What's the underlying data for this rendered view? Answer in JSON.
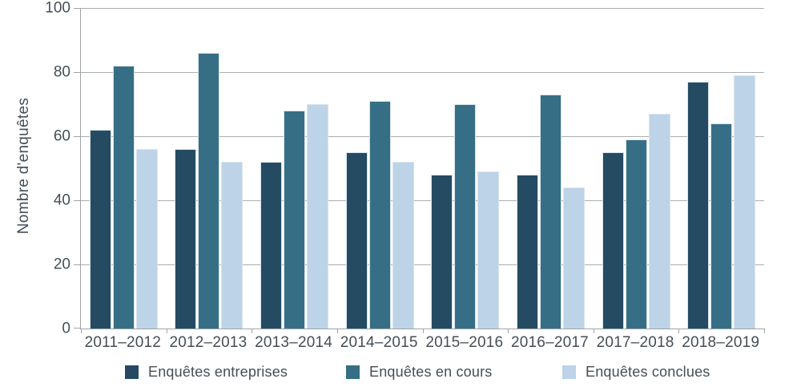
{
  "chart_data": {
    "type": "bar",
    "title": "",
    "xlabel": "",
    "ylabel": "Nombre d'enquêtes",
    "ylim": [
      0,
      100
    ],
    "yticks": [
      0,
      20,
      40,
      60,
      80,
      100
    ],
    "grid": true,
    "legend_position": "bottom",
    "categories": [
      "2011–2012",
      "2012–2013",
      "2013–2014",
      "2014–2015",
      "2015–2016",
      "2016–2017",
      "2017–2018",
      "2018–2019"
    ],
    "series": [
      {
        "name": "Enquêtes entreprises",
        "color": "#254b63",
        "values": [
          62,
          56,
          52,
          55,
          48,
          48,
          55,
          77
        ]
      },
      {
        "name": "Enquêtes en cours",
        "color": "#366f85",
        "values": [
          82,
          86,
          68,
          71,
          70,
          73,
          59,
          64
        ]
      },
      {
        "name": "Enquêtes conclues",
        "color": "#bdd3e7",
        "values": [
          56,
          52,
          70,
          52,
          49,
          44,
          67,
          79
        ]
      }
    ],
    "colors": {
      "gridline": "#abaeb0",
      "axis": "#9fa3a6",
      "text": "#454e57",
      "bar_border": "#d9e4ee",
      "background": "#ffffff"
    }
  }
}
